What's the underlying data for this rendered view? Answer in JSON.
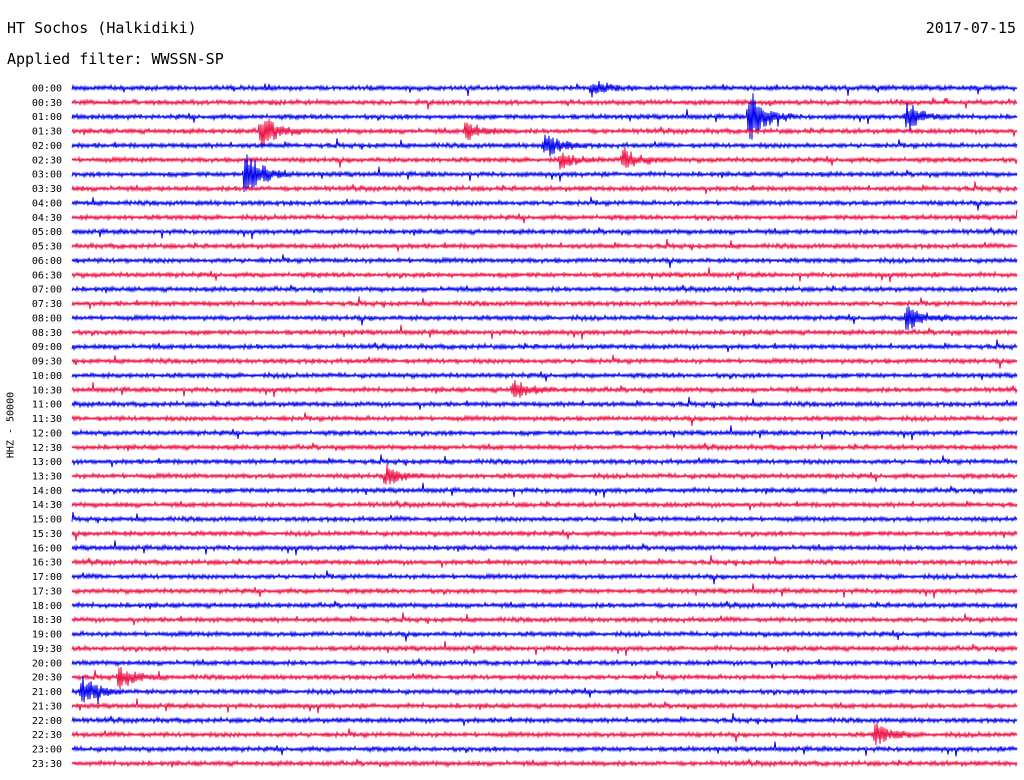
{
  "header": {
    "station": "HT Sochos (Halkidiki)",
    "date": "2017-07-15",
    "filter_text": "Applied filter: WWSSN-SP"
  },
  "chart_data": {
    "type": "line",
    "title": "HT Sochos (Halkidiki)",
    "subtitle": "Applied filter: WWSSN-SP",
    "ylabel": "HHZ - 50000",
    "xlabel": "",
    "colors": [
      "#0000ee",
      "#ee1144"
    ],
    "row_labels": [
      "00:00",
      "00:30",
      "01:00",
      "01:30",
      "02:00",
      "02:30",
      "03:00",
      "03:30",
      "04:00",
      "04:30",
      "05:00",
      "05:30",
      "06:00",
      "06:30",
      "07:00",
      "07:30",
      "08:00",
      "08:30",
      "09:00",
      "09:30",
      "10:00",
      "10:30",
      "11:00",
      "11:30",
      "12:00",
      "12:30",
      "13:00",
      "13:30",
      "14:00",
      "14:30",
      "15:00",
      "15:30",
      "16:00",
      "16:30",
      "17:00",
      "17:30",
      "18:00",
      "18:30",
      "19:00",
      "19:30",
      "20:00",
      "20:30",
      "21:00",
      "21:30",
      "22:00",
      "22:30",
      "23:00",
      "23:30"
    ],
    "minutes_per_row": 30,
    "events": [
      {
        "row": "00:00",
        "minute": 16.5,
        "amplitude": 8
      },
      {
        "row": "01:00",
        "minute": 21.5,
        "amplitude": 30
      },
      {
        "row": "01:00",
        "minute": 26.5,
        "amplitude": 14
      },
      {
        "row": "01:30",
        "minute": 6.0,
        "amplitude": 18
      },
      {
        "row": "01:30",
        "minute": 12.5,
        "amplitude": 10
      },
      {
        "row": "02:00",
        "minute": 15.0,
        "amplitude": 14
      },
      {
        "row": "02:30",
        "minute": 15.5,
        "amplitude": 8
      },
      {
        "row": "02:30",
        "minute": 17.5,
        "amplitude": 12
      },
      {
        "row": "03:00",
        "minute": 5.5,
        "amplitude": 28
      },
      {
        "row": "08:00",
        "minute": 26.5,
        "amplitude": 14
      },
      {
        "row": "10:30",
        "minute": 14.0,
        "amplitude": 10
      },
      {
        "row": "13:30",
        "minute": 10.0,
        "amplitude": 10
      },
      {
        "row": "20:30",
        "minute": 1.5,
        "amplitude": 12
      },
      {
        "row": "21:00",
        "minute": 0.3,
        "amplitude": 16
      },
      {
        "row": "22:30",
        "minute": 25.5,
        "amplitude": 12
      }
    ],
    "xlim": [
      0,
      30
    ],
    "grid": false,
    "legend": "none"
  }
}
